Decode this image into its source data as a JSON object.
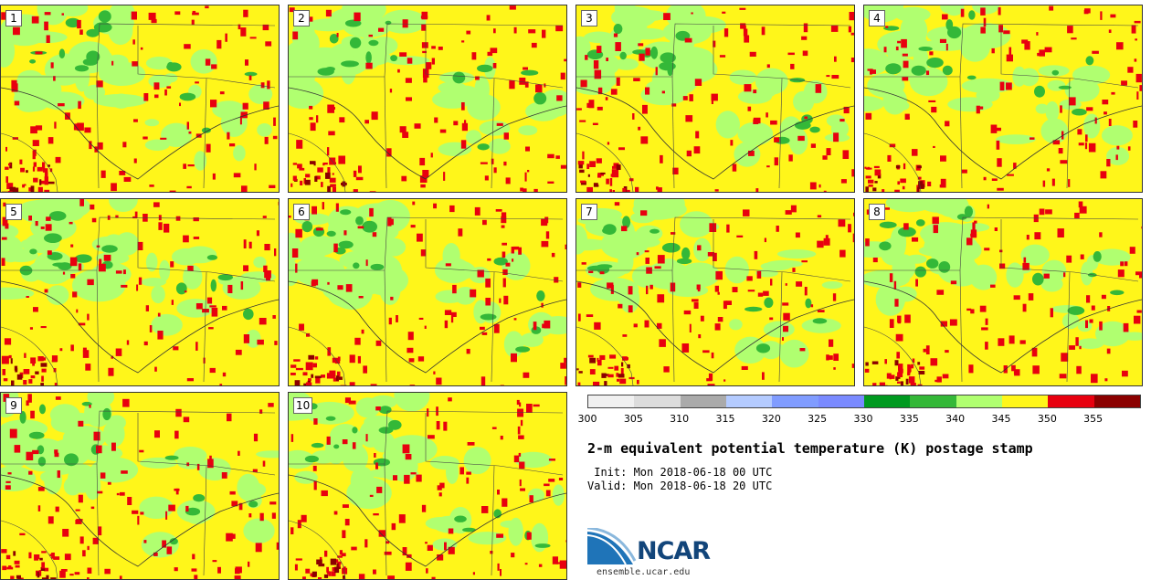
{
  "figure": {
    "title": "2-m equivalent potential temperature (K) postage stamp",
    "init": " Init: Mon 2018-06-18 00 UTC",
    "valid": "Valid: Mon 2018-06-18 20 UTC",
    "site": "ensemble.ucar.edu",
    "logo_text": "NCAR"
  },
  "members": [
    "1",
    "2",
    "3",
    "4",
    "5",
    "6",
    "7",
    "8",
    "9",
    "10"
  ],
  "colorbar": {
    "ticks": [
      "300",
      "305",
      "310",
      "315",
      "320",
      "325",
      "330",
      "335",
      "340",
      "345",
      "350",
      "355"
    ],
    "colors": [
      "#f0f0f0",
      "#dcdcdc",
      "#aaaaaa",
      "#b4cbff",
      "#809cff",
      "#7a8aff",
      "#009a20",
      "#34b838",
      "#b0ff70",
      "#fff61a",
      "#e8000f",
      "#8b0000"
    ]
  },
  "palette": {
    "background_field": "#fff61a",
    "warm": "#e8000f",
    "hot": "#8b0000",
    "cool_light": "#b0ff70",
    "cool_dark": "#34b838"
  }
}
